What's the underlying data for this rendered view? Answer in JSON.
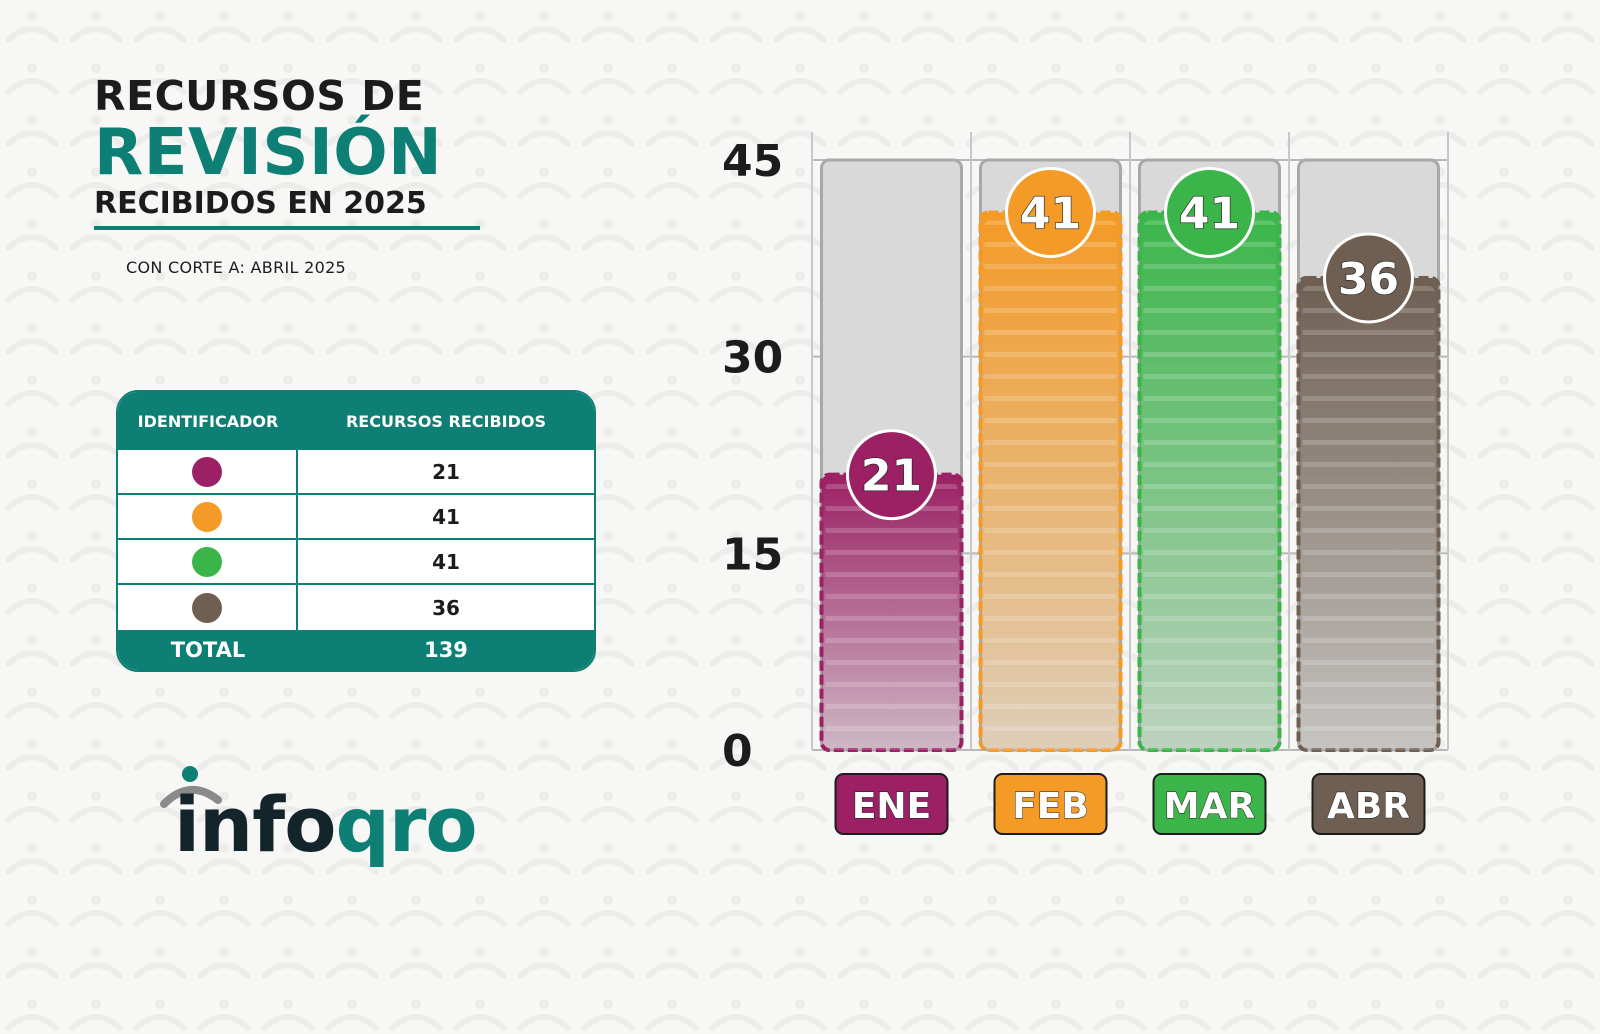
{
  "header": {
    "line1": "RECURSOS DE",
    "line2": "REVISIÓN",
    "line3": "RECIBIDOS EN 2025",
    "cutoff": "CON CORTE A: ABRIL 2025"
  },
  "table": {
    "col1": "IDENTIFICADOR",
    "col2": "RECURSOS RECIBIDOS",
    "rows": [
      {
        "color": "#9b2064",
        "value": "21"
      },
      {
        "color": "#f49a26",
        "value": "41"
      },
      {
        "color": "#3bb54a",
        "value": "41"
      },
      {
        "color": "#6e5f52",
        "value": "36"
      }
    ],
    "total_label": "TOTAL",
    "total_value": "139"
  },
  "logo": {
    "part1": "info",
    "part2": "qro"
  },
  "chart_data": {
    "type": "bar",
    "categories": [
      "ENE",
      "FEB",
      "MAR",
      "ABR"
    ],
    "values": [
      21,
      41,
      41,
      36
    ],
    "colors": [
      "#9b2064",
      "#f49a26",
      "#3bb54a",
      "#6e5f52"
    ],
    "yticks": [
      0,
      15,
      30,
      45
    ],
    "ylim": [
      0,
      45
    ],
    "grid": true,
    "title": "",
    "xlabel": "",
    "ylabel": ""
  }
}
